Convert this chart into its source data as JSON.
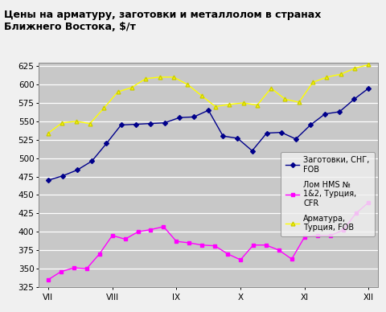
{
  "title": "Цены на арматуру, заготовки и металлолом в странах\nБлижнего Востока, $/т",
  "xlabel_ticks": [
    "VII",
    "VIII",
    "IX",
    "X",
    "XI",
    "XII"
  ],
  "ylim": [
    325,
    630
  ],
  "yticks": [
    325,
    350,
    375,
    400,
    425,
    450,
    475,
    500,
    525,
    550,
    575,
    600,
    625
  ],
  "series": {
    "billets": {
      "label": "Заготовки, СНГ,\nFOB",
      "color": "#00008B",
      "data": [
        470,
        476,
        484,
        496,
        520,
        545,
        546,
        547,
        548,
        555,
        556,
        565,
        530,
        527,
        510,
        534,
        535,
        526,
        545,
        560,
        563,
        580,
        595
      ]
    },
    "scrap": {
      "label": "Лом HMS №\n1&2, Турция,\nCFR",
      "color": "#FF00FF",
      "data": [
        335,
        346,
        351,
        350,
        370,
        395,
        390,
        400,
        403,
        407,
        387,
        385,
        382,
        381,
        370,
        362,
        382,
        382,
        375,
        363,
        393,
        395,
        395,
        402,
        425,
        440
      ]
    },
    "rebar": {
      "label": "Арматура,\nТурция, FOB",
      "color": "#FFFF00",
      "data": [
        534,
        548,
        550,
        547,
        568,
        590,
        596,
        608,
        610,
        610,
        600,
        585,
        570,
        573,
        575,
        572,
        595,
        580,
        576,
        603,
        610,
        614,
        622,
        627
      ]
    }
  },
  "fig_bg": "#F0F0F0",
  "plot_bg": "#C8C8C8",
  "legend_bg": "#F0F0F0",
  "title_fontsize": 9,
  "tick_fontsize": 7.5,
  "legend_fontsize": 7
}
